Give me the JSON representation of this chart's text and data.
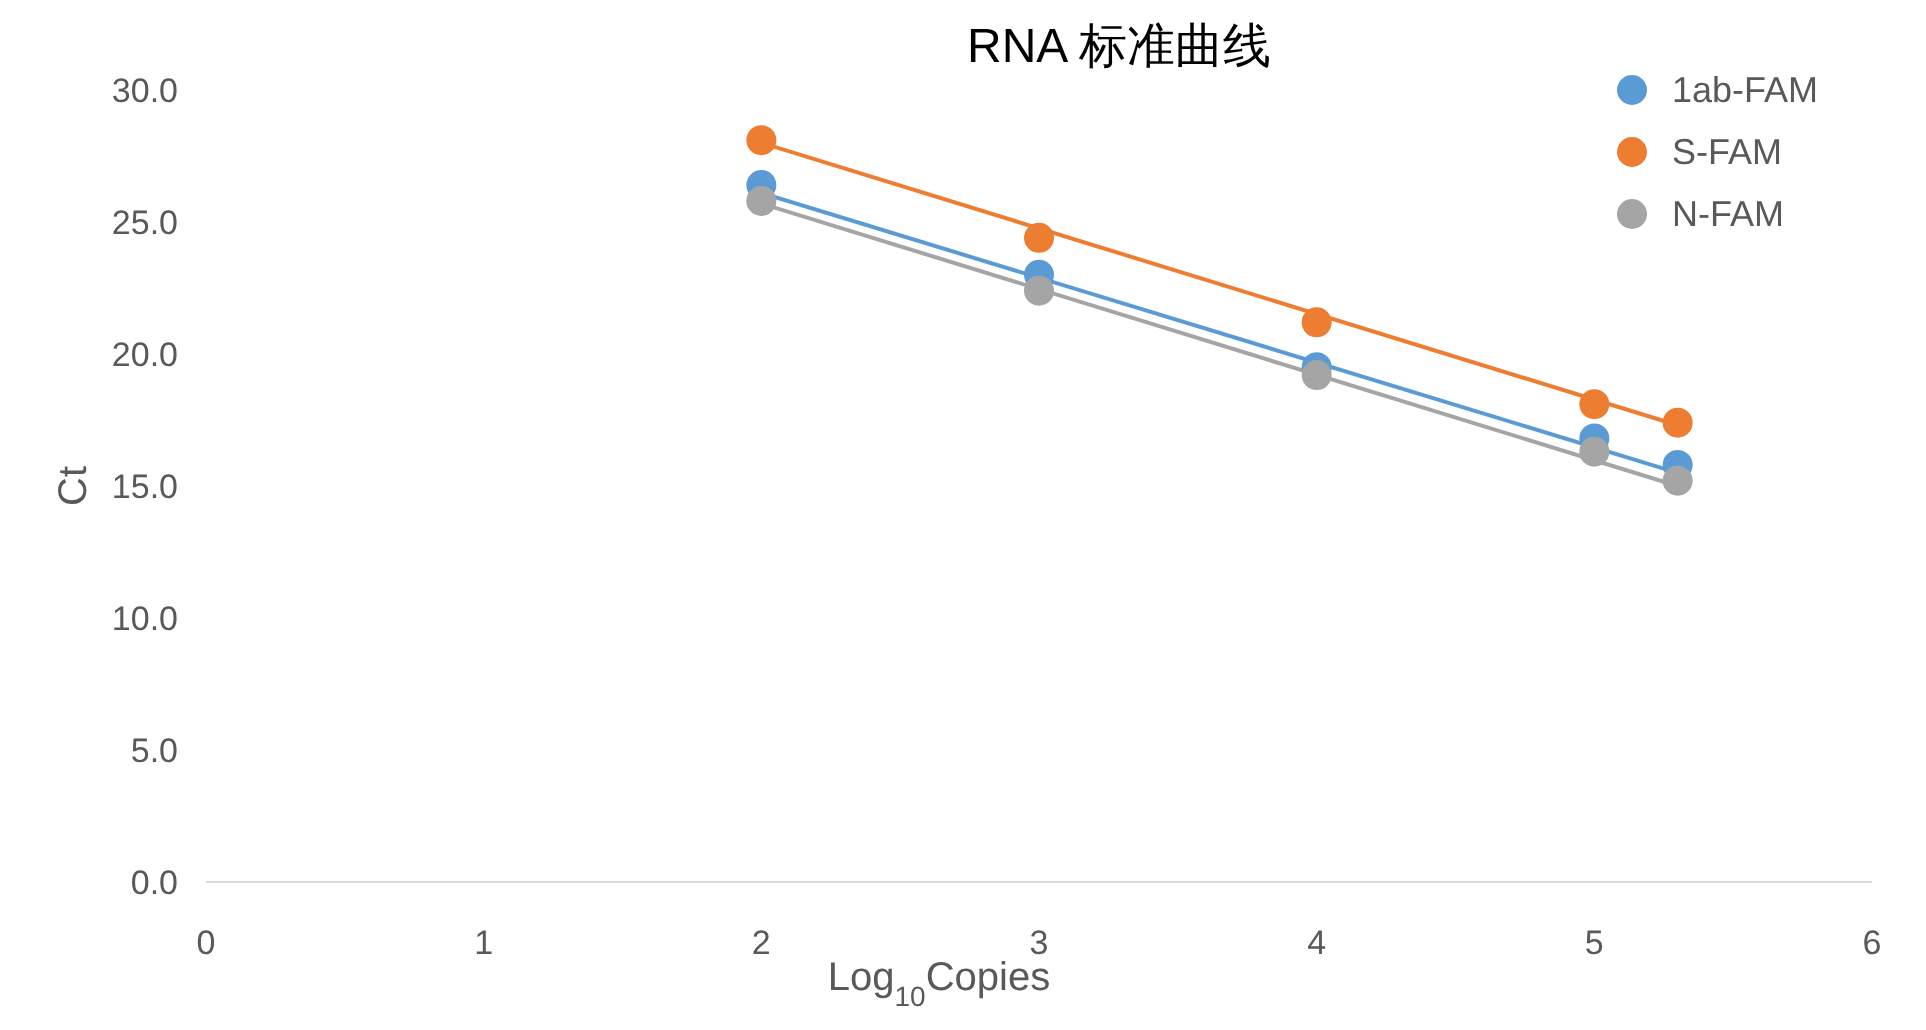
{
  "chart_data": {
    "type": "scatter",
    "title": "RNA 标准曲线",
    "xlabel": "Log$_{10}$Copies",
    "ylabel": "Ct",
    "xlim": [
      0,
      6
    ],
    "ylim": [
      0,
      30
    ],
    "xticks": [
      0,
      1,
      2,
      3,
      4,
      5,
      6
    ],
    "yticks": [
      {
        "value": 0,
        "label": "0.0"
      },
      {
        "value": 5,
        "label": "5.0"
      },
      {
        "value": 10,
        "label": "10.0"
      },
      {
        "value": 15,
        "label": "15.0"
      },
      {
        "value": 20,
        "label": "20.0"
      },
      {
        "value": 25,
        "label": "25.0"
      },
      {
        "value": 30,
        "label": "30.0"
      }
    ],
    "legend": "top right",
    "series": [
      {
        "type": "line",
        "color": "#5b9bd5",
        "marker": "none",
        "x": [
          2,
          5.3
        ],
        "values": [
          26.1,
          15.5
        ]
      },
      {
        "type": "line",
        "color": "#ed7d31",
        "marker": "none",
        "x": [
          2,
          5.3
        ],
        "values": [
          28.0,
          17.3
        ]
      },
      {
        "type": "line",
        "color": "#a5a5a5",
        "marker": "none",
        "x": [
          2,
          5.3
        ],
        "values": [
          25.7,
          15.0
        ]
      },
      {
        "type": "scatter",
        "name": "1ab-FAM",
        "color": "#5b9bd5",
        "marker": "circle",
        "x": [
          2,
          3,
          4,
          5,
          5.3
        ],
        "values": [
          26.4,
          23.0,
          19.5,
          16.8,
          15.8
        ]
      },
      {
        "type": "scatter",
        "name": "S-FAM",
        "color": "#ed7d31",
        "marker": "circle",
        "x": [
          2,
          3,
          4,
          5,
          5.3
        ],
        "values": [
          28.1,
          24.4,
          21.2,
          18.1,
          17.4
        ]
      },
      {
        "type": "scatter",
        "name": "N-FAM",
        "color": "#a5a5a5",
        "marker": "circle",
        "x": [
          2,
          3,
          4,
          5,
          5.3
        ],
        "values": [
          25.8,
          22.4,
          19.2,
          16.3,
          15.2
        ]
      }
    ]
  }
}
